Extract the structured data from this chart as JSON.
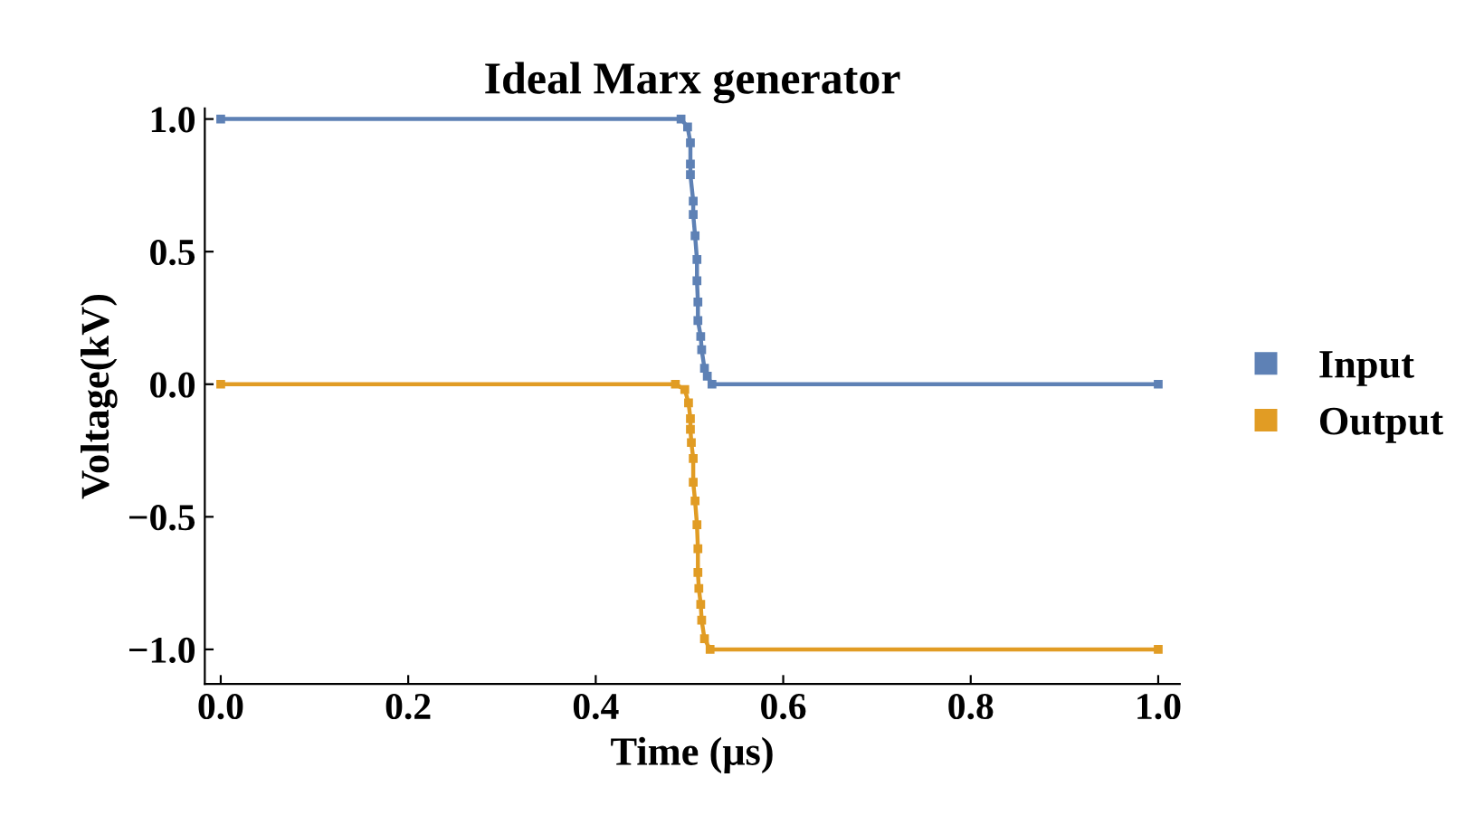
{
  "chart_data": {
    "type": "line",
    "title": "Ideal Marx generator",
    "xlabel": "Time (μs)",
    "ylabel": "Voltage(kV)",
    "xlim": [
      -0.017,
      1.023
    ],
    "ylim": [
      -1.13,
      1.04
    ],
    "xticks": [
      {
        "value": 0,
        "label": "0.0"
      },
      0.2,
      0.4,
      0.6,
      0.8,
      {
        "value": 1,
        "label": "1.0"
      }
    ],
    "yticks": [
      {
        "value": -1,
        "label": "−1.0"
      },
      {
        "value": -0.5,
        "label": "−0.5"
      },
      {
        "value": 0,
        "label": "0.0"
      },
      0.5,
      {
        "value": 1,
        "label": "1.0"
      }
    ],
    "grid": false,
    "legend": "right",
    "marker": "square",
    "line_style": "solid",
    "series": [
      {
        "name": "Input",
        "color": "#5e81b5",
        "x": [
          0,
          0.491,
          0.498,
          0.501,
          0.501,
          0.501,
          0.504,
          0.504,
          0.506,
          0.508,
          0.508,
          0.509,
          0.509,
          0.512,
          0.513,
          0.516,
          0.519,
          0.524,
          1.0
        ],
        "values": [
          1.0,
          1.0,
          0.97,
          0.91,
          0.83,
          0.79,
          0.69,
          0.64,
          0.56,
          0.47,
          0.39,
          0.31,
          0.24,
          0.18,
          0.13,
          0.06,
          0.03,
          0.0,
          0.0
        ]
      },
      {
        "name": "Output",
        "color": "#e19c24",
        "x": [
          0,
          0.485,
          0.495,
          0.499,
          0.501,
          0.501,
          0.502,
          0.504,
          0.504,
          0.506,
          0.508,
          0.509,
          0.509,
          0.51,
          0.512,
          0.513,
          0.516,
          0.522,
          1.0
        ],
        "values": [
          0.0,
          0.0,
          -0.02,
          -0.07,
          -0.13,
          -0.17,
          -0.22,
          -0.28,
          -0.37,
          -0.44,
          -0.53,
          -0.62,
          -0.71,
          -0.77,
          -0.83,
          -0.89,
          -0.96,
          -1.0,
          -1.0
        ]
      }
    ]
  }
}
